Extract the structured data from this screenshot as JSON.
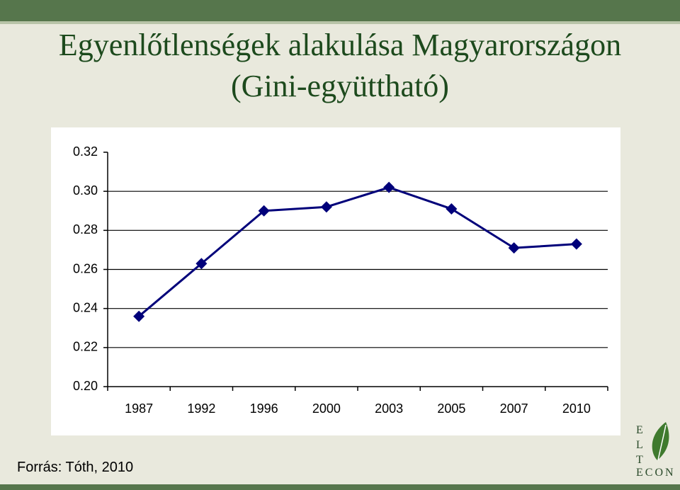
{
  "slide": {
    "title": [
      "Egyenlőtlenségek alakulása Magyarországon",
      "(Gini-együttható)"
    ],
    "source": "Forrás: Tóth, 2010",
    "logo": {
      "letters": [
        "E",
        "L",
        "T"
      ],
      "word": "ECON"
    }
  },
  "chart_data": {
    "type": "line",
    "categories": [
      "1987",
      "1992",
      "1996",
      "2000",
      "2003",
      "2005",
      "2007",
      "2010"
    ],
    "series": [
      {
        "color": "#00007a",
        "values": [
          0.236,
          0.263,
          0.29,
          0.292,
          0.302,
          0.291,
          0.271,
          0.273
        ]
      }
    ],
    "ylim": [
      0.2,
      0.32
    ],
    "yticks": [
      {
        "value": 0.2,
        "label": "0.20"
      },
      0.22,
      0.24,
      0.26,
      0.28,
      {
        "value": 0.3,
        "label": "0.30"
      },
      0.32
    ],
    "grid": true
  }
}
